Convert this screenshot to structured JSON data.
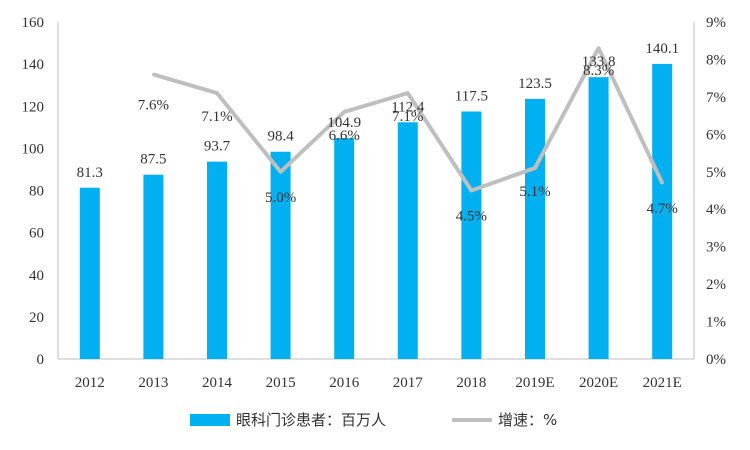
{
  "chart_data": {
    "type": "bar",
    "categories": [
      "2012",
      "2013",
      "2014",
      "2015",
      "2016",
      "2017",
      "2018",
      "2019E",
      "2020E",
      "2021E"
    ],
    "series": [
      {
        "name": "眼科门诊患者：百万人",
        "type": "bar",
        "axis": "left",
        "color": "#00b0f0",
        "values": [
          81.3,
          87.5,
          93.7,
          98.4,
          104.9,
          112.4,
          117.5,
          123.5,
          133.8,
          140.1
        ],
        "labels": [
          "81.3",
          "87.5",
          "93.7",
          "98.4",
          "104.9",
          "112.4",
          "117.5",
          "123.5",
          "133.8",
          "140.1"
        ]
      },
      {
        "name": "增速：%",
        "type": "line",
        "axis": "right",
        "color": "#bfbfbf",
        "values": [
          null,
          7.6,
          7.1,
          5.0,
          6.6,
          7.1,
          4.5,
          5.1,
          8.3,
          4.7
        ],
        "labels": [
          "",
          "7.6%",
          "7.1%",
          "5.0%",
          "6.6%",
          "7.1%",
          "4.5%",
          "5.1%",
          "8.3%",
          "4.7%"
        ]
      }
    ],
    "y_left": {
      "min": 0,
      "max": 160,
      "step": 20,
      "ticks": [
        "0",
        "20",
        "40",
        "60",
        "80",
        "100",
        "120",
        "140",
        "160"
      ]
    },
    "y_right": {
      "min": 0,
      "max": 9,
      "step": 1,
      "ticks": [
        "0%",
        "1%",
        "2%",
        "3%",
        "4%",
        "5%",
        "6%",
        "7%",
        "8%",
        "9%"
      ]
    },
    "legend": {
      "position": "bottom"
    },
    "grid": false
  }
}
